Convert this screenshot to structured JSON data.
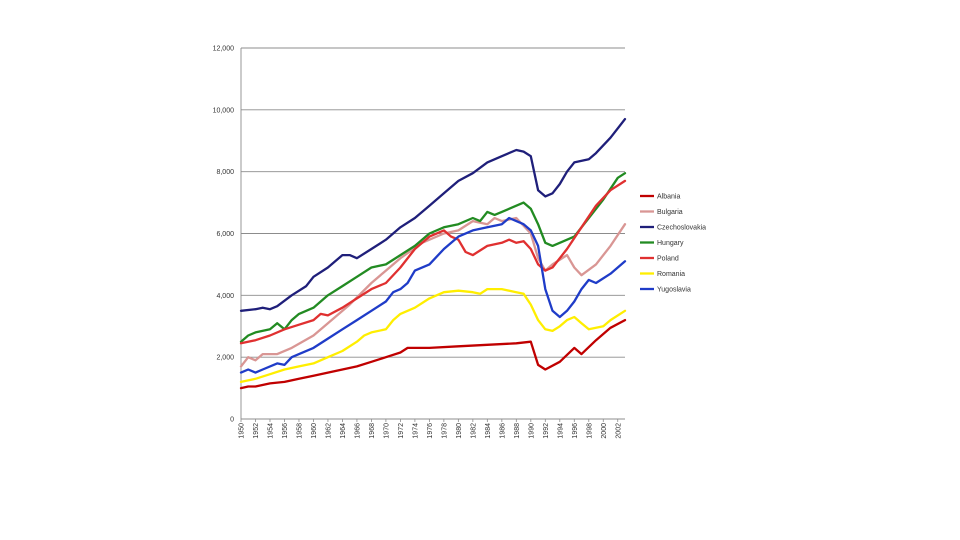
{
  "chart_data": {
    "type": "line",
    "title": "",
    "xlabel": "",
    "ylabel": "",
    "ylim": [
      0,
      12000
    ],
    "yticks": [
      0,
      2000,
      4000,
      6000,
      8000,
      10000,
      12000
    ],
    "ytick_labels": [
      "0",
      "2,000",
      "4,000",
      "6,000",
      "8,000",
      "10,000",
      "12,000"
    ],
    "xlim": [
      1950,
      2003
    ],
    "xticks": [
      1950,
      1952,
      1954,
      1956,
      1958,
      1960,
      1962,
      1964,
      1966,
      1968,
      1970,
      1972,
      1974,
      1976,
      1978,
      1980,
      1982,
      1984,
      1986,
      1988,
      1990,
      1992,
      1994,
      1996,
      1998,
      2000,
      2002
    ],
    "xtick_labels": [
      "1950",
      "1952",
      "1954",
      "1956",
      "1958",
      "1960",
      "1962",
      "1964",
      "1966",
      "1968",
      "1970",
      "1972",
      "1974",
      "1976",
      "1978",
      "1980",
      "1982",
      "1984",
      "1986",
      "1988",
      "1990",
      "1992",
      "1994",
      "1996",
      "1998",
      "2000",
      "2002"
    ],
    "grid": true,
    "legend_position": "right",
    "series": [
      {
        "name": "Albania",
        "color": "#c00000",
        "points": [
          [
            1950,
            1000
          ],
          [
            1951,
            1050
          ],
          [
            1952,
            1050
          ],
          [
            1954,
            1150
          ],
          [
            1956,
            1200
          ],
          [
            1958,
            1300
          ],
          [
            1960,
            1400
          ],
          [
            1962,
            1500
          ],
          [
            1964,
            1600
          ],
          [
            1966,
            1700
          ],
          [
            1968,
            1850
          ],
          [
            1970,
            2000
          ],
          [
            1972,
            2150
          ],
          [
            1973,
            2300
          ],
          [
            1976,
            2300
          ],
          [
            1980,
            2350
          ],
          [
            1984,
            2400
          ],
          [
            1988,
            2450
          ],
          [
            1990,
            2500
          ],
          [
            1991,
            1750
          ],
          [
            1992,
            1600
          ],
          [
            1994,
            1850
          ],
          [
            1996,
            2300
          ],
          [
            1997,
            2100
          ],
          [
            1999,
            2550
          ],
          [
            2001,
            2950
          ],
          [
            2003,
            3200
          ]
        ]
      },
      {
        "name": "Bulgaria",
        "color": "#d99694",
        "points": [
          [
            1950,
            1700
          ],
          [
            1951,
            2000
          ],
          [
            1952,
            1900
          ],
          [
            1953,
            2100
          ],
          [
            1955,
            2100
          ],
          [
            1957,
            2300
          ],
          [
            1960,
            2700
          ],
          [
            1962,
            3100
          ],
          [
            1965,
            3700
          ],
          [
            1968,
            4400
          ],
          [
            1970,
            4800
          ],
          [
            1972,
            5200
          ],
          [
            1975,
            5700
          ],
          [
            1978,
            6000
          ],
          [
            1980,
            6100
          ],
          [
            1982,
            6400
          ],
          [
            1984,
            6300
          ],
          [
            1985,
            6500
          ],
          [
            1986,
            6400
          ],
          [
            1988,
            6500
          ],
          [
            1990,
            6000
          ],
          [
            1991,
            5200
          ],
          [
            1992,
            4800
          ],
          [
            1993,
            5000
          ],
          [
            1995,
            5300
          ],
          [
            1996,
            4900
          ],
          [
            1997,
            4650
          ],
          [
            1999,
            5000
          ],
          [
            2001,
            5600
          ],
          [
            2003,
            6300
          ]
        ]
      },
      {
        "name": "Czechoslovakia",
        "color": "#1f1f7a",
        "points": [
          [
            1950,
            3500
          ],
          [
            1952,
            3550
          ],
          [
            1953,
            3600
          ],
          [
            1954,
            3550
          ],
          [
            1955,
            3650
          ],
          [
            1957,
            4000
          ],
          [
            1959,
            4300
          ],
          [
            1960,
            4600
          ],
          [
            1962,
            4900
          ],
          [
            1963,
            5100
          ],
          [
            1964,
            5300
          ],
          [
            1965,
            5300
          ],
          [
            1966,
            5200
          ],
          [
            1968,
            5500
          ],
          [
            1970,
            5800
          ],
          [
            1972,
            6200
          ],
          [
            1974,
            6500
          ],
          [
            1976,
            6900
          ],
          [
            1978,
            7300
          ],
          [
            1980,
            7700
          ],
          [
            1982,
            7950
          ],
          [
            1984,
            8300
          ],
          [
            1986,
            8500
          ],
          [
            1988,
            8700
          ],
          [
            1989,
            8650
          ],
          [
            1990,
            8500
          ],
          [
            1991,
            7400
          ],
          [
            1992,
            7200
          ],
          [
            1993,
            7300
          ],
          [
            1994,
            7600
          ],
          [
            1995,
            8000
          ],
          [
            1996,
            8300
          ],
          [
            1998,
            8400
          ],
          [
            1999,
            8600
          ],
          [
            2001,
            9100
          ],
          [
            2003,
            9700
          ]
        ]
      },
      {
        "name": "Hungary",
        "color": "#228b22",
        "points": [
          [
            1950,
            2500
          ],
          [
            1951,
            2700
          ],
          [
            1952,
            2800
          ],
          [
            1954,
            2900
          ],
          [
            1955,
            3100
          ],
          [
            1956,
            2900
          ],
          [
            1957,
            3200
          ],
          [
            1958,
            3400
          ],
          [
            1960,
            3600
          ],
          [
            1962,
            4000
          ],
          [
            1964,
            4300
          ],
          [
            1966,
            4600
          ],
          [
            1968,
            4900
          ],
          [
            1970,
            5000
          ],
          [
            1972,
            5300
          ],
          [
            1974,
            5600
          ],
          [
            1976,
            6000
          ],
          [
            1978,
            6200
          ],
          [
            1980,
            6300
          ],
          [
            1982,
            6500
          ],
          [
            1983,
            6400
          ],
          [
            1984,
            6700
          ],
          [
            1985,
            6600
          ],
          [
            1986,
            6700
          ],
          [
            1988,
            6900
          ],
          [
            1989,
            7000
          ],
          [
            1990,
            6800
          ],
          [
            1991,
            6300
          ],
          [
            1992,
            5700
          ],
          [
            1993,
            5600
          ],
          [
            1994,
            5700
          ],
          [
            1996,
            5900
          ],
          [
            1998,
            6500
          ],
          [
            2000,
            7100
          ],
          [
            2002,
            7800
          ],
          [
            2003,
            7950
          ]
        ]
      },
      {
        "name": "Poland",
        "color": "#e03030",
        "points": [
          [
            1950,
            2450
          ],
          [
            1952,
            2550
          ],
          [
            1954,
            2700
          ],
          [
            1956,
            2900
          ],
          [
            1958,
            3050
          ],
          [
            1960,
            3200
          ],
          [
            1961,
            3400
          ],
          [
            1962,
            3350
          ],
          [
            1964,
            3600
          ],
          [
            1966,
            3900
          ],
          [
            1968,
            4200
          ],
          [
            1970,
            4400
          ],
          [
            1972,
            4900
          ],
          [
            1974,
            5500
          ],
          [
            1976,
            5900
          ],
          [
            1978,
            6100
          ],
          [
            1979,
            5900
          ],
          [
            1980,
            5800
          ],
          [
            1981,
            5400
          ],
          [
            1982,
            5300
          ],
          [
            1984,
            5600
          ],
          [
            1986,
            5700
          ],
          [
            1987,
            5800
          ],
          [
            1988,
            5700
          ],
          [
            1989,
            5750
          ],
          [
            1990,
            5500
          ],
          [
            1991,
            5000
          ],
          [
            1992,
            4800
          ],
          [
            1993,
            4900
          ],
          [
            1995,
            5500
          ],
          [
            1997,
            6200
          ],
          [
            1999,
            6900
          ],
          [
            2001,
            7400
          ],
          [
            2003,
            7700
          ]
        ]
      },
      {
        "name": "Romania",
        "color": "#ffee00",
        "points": [
          [
            1950,
            1200
          ],
          [
            1952,
            1300
          ],
          [
            1954,
            1450
          ],
          [
            1956,
            1600
          ],
          [
            1958,
            1700
          ],
          [
            1960,
            1800
          ],
          [
            1962,
            2000
          ],
          [
            1964,
            2200
          ],
          [
            1966,
            2500
          ],
          [
            1967,
            2700
          ],
          [
            1968,
            2800
          ],
          [
            1970,
            2900
          ],
          [
            1971,
            3200
          ],
          [
            1972,
            3400
          ],
          [
            1974,
            3600
          ],
          [
            1976,
            3900
          ],
          [
            1978,
            4100
          ],
          [
            1980,
            4150
          ],
          [
            1982,
            4100
          ],
          [
            1983,
            4050
          ],
          [
            1984,
            4200
          ],
          [
            1986,
            4200
          ],
          [
            1988,
            4100
          ],
          [
            1989,
            4050
          ],
          [
            1990,
            3700
          ],
          [
            1991,
            3200
          ],
          [
            1992,
            2900
          ],
          [
            1993,
            2850
          ],
          [
            1994,
            3000
          ],
          [
            1995,
            3200
          ],
          [
            1996,
            3300
          ],
          [
            1997,
            3100
          ],
          [
            1998,
            2900
          ],
          [
            2000,
            3000
          ],
          [
            2001,
            3200
          ],
          [
            2003,
            3500
          ]
        ]
      },
      {
        "name": "Yugoslavia",
        "color": "#1f3cc8",
        "points": [
          [
            1950,
            1500
          ],
          [
            1951,
            1600
          ],
          [
            1952,
            1500
          ],
          [
            1953,
            1600
          ],
          [
            1955,
            1800
          ],
          [
            1956,
            1750
          ],
          [
            1957,
            2000
          ],
          [
            1958,
            2100
          ],
          [
            1960,
            2300
          ],
          [
            1962,
            2600
          ],
          [
            1964,
            2900
          ],
          [
            1966,
            3200
          ],
          [
            1968,
            3500
          ],
          [
            1970,
            3800
          ],
          [
            1971,
            4100
          ],
          [
            1972,
            4200
          ],
          [
            1973,
            4400
          ],
          [
            1974,
            4800
          ],
          [
            1976,
            5000
          ],
          [
            1978,
            5500
          ],
          [
            1980,
            5900
          ],
          [
            1982,
            6100
          ],
          [
            1984,
            6200
          ],
          [
            1986,
            6300
          ],
          [
            1987,
            6500
          ],
          [
            1988,
            6400
          ],
          [
            1989,
            6300
          ],
          [
            1990,
            6100
          ],
          [
            1991,
            5600
          ],
          [
            1992,
            4200
          ],
          [
            1993,
            3500
          ],
          [
            1994,
            3300
          ],
          [
            1995,
            3500
          ],
          [
            1996,
            3800
          ],
          [
            1997,
            4200
          ],
          [
            1998,
            4500
          ],
          [
            1999,
            4400
          ],
          [
            2001,
            4700
          ],
          [
            2003,
            5100
          ]
        ]
      }
    ]
  }
}
